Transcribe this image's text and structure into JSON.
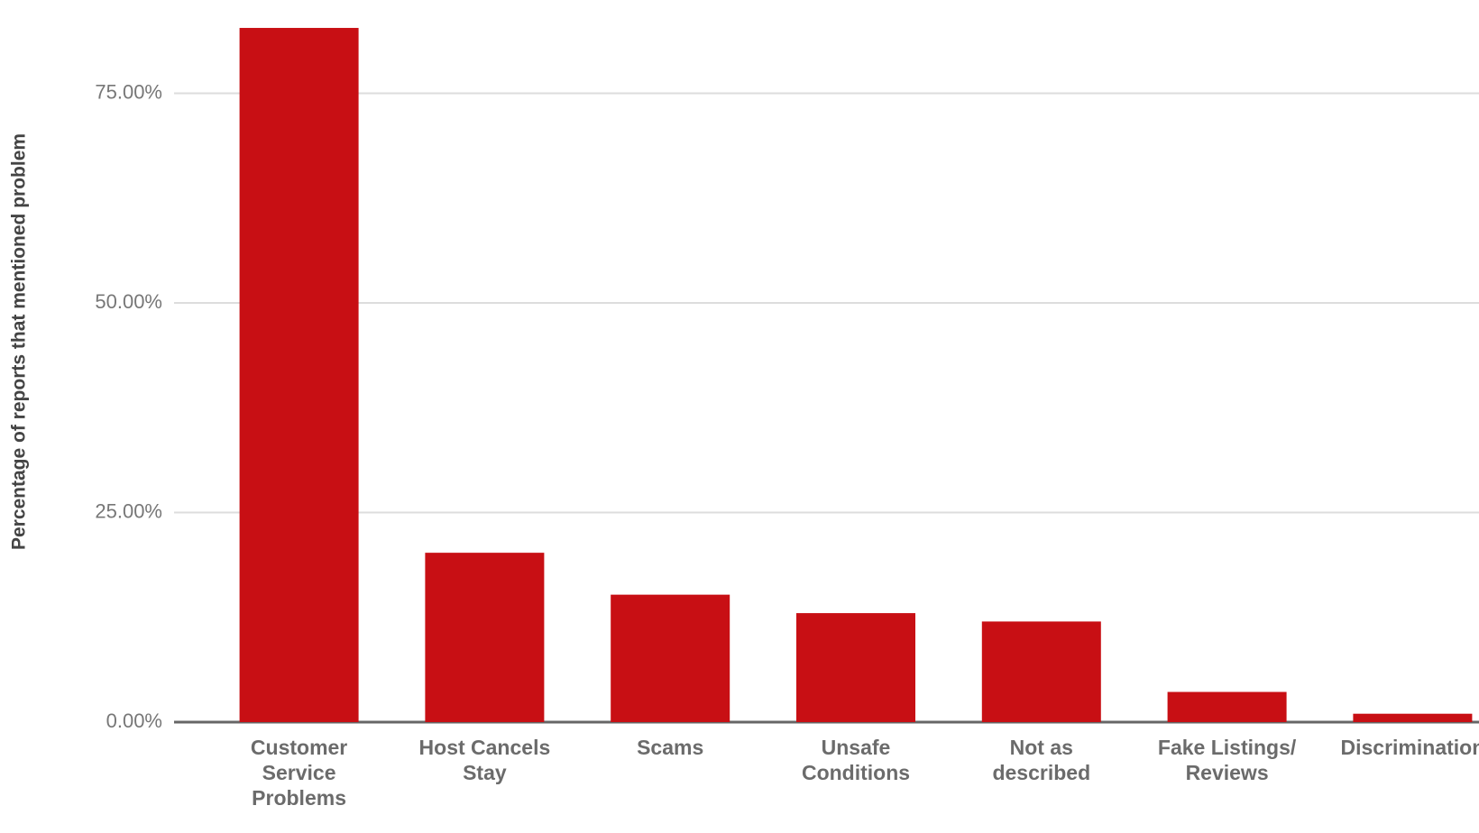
{
  "chart_data": {
    "type": "bar",
    "y_label": "Percentage of reports that mentioned problem",
    "categories": [
      "Customer\nService\nProblems",
      "Host Cancels\nStay",
      "Scams",
      "Unsafe\nConditions",
      "Not as\ndescribed",
      "Fake Listings/\nReviews",
      "Discrimination"
    ],
    "values": [
      82.8,
      20.2,
      15.2,
      13.0,
      12.0,
      3.6,
      1.0
    ],
    "color": "#c80f14",
    "ylim": [
      0,
      85
    ],
    "yticks": [
      {
        "value": 0,
        "label": "0.00%"
      },
      {
        "value": 25,
        "label": "25.00%"
      },
      {
        "value": 50,
        "label": "50.00%"
      },
      {
        "value": 75,
        "label": "75.00%"
      }
    ],
    "grid": true
  }
}
